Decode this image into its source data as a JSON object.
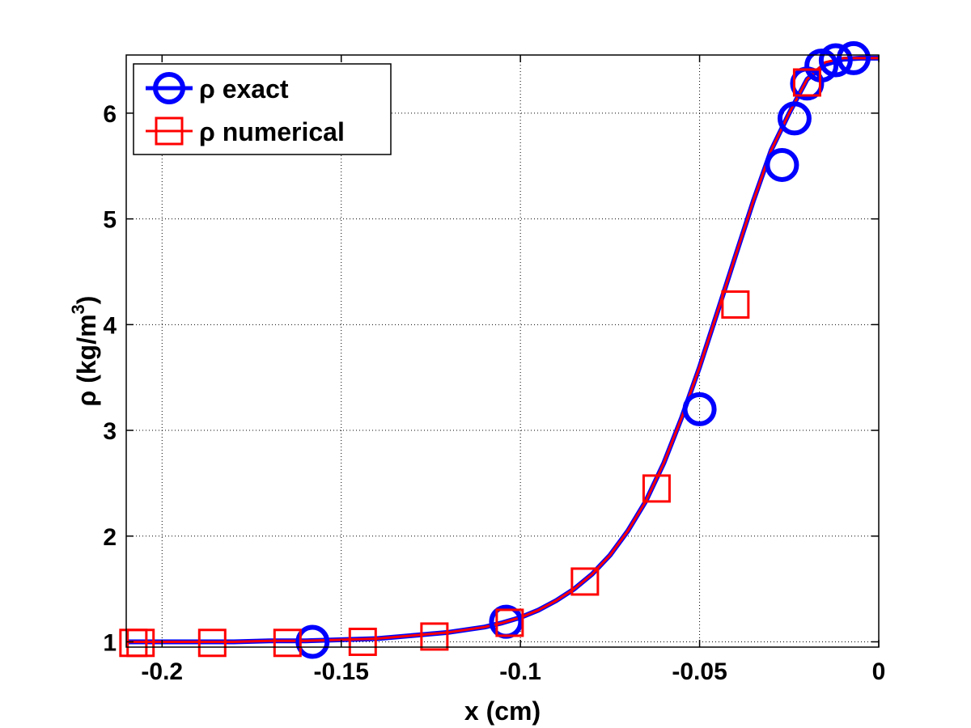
{
  "chart_data": {
    "type": "line",
    "title": "",
    "xlabel": "x (cm)",
    "ylabel": "ρ (kg/m",
    "ylabel_sup": "3",
    "ylabel_close": ")",
    "xlim": [
      -0.21,
      0.0
    ],
    "ylim": [
      0.95,
      6.55
    ],
    "x_ticks": [
      -0.2,
      -0.15,
      -0.1,
      -0.05,
      0
    ],
    "x_tick_labels": [
      "-0.2",
      "-0.15",
      "-0.1",
      "-0.05",
      "0"
    ],
    "y_ticks": [
      1,
      2,
      3,
      4,
      5,
      6
    ],
    "y_tick_labels": [
      "1",
      "2",
      "3",
      "4",
      "5",
      "6"
    ],
    "grid": true,
    "legend_position": "top-left",
    "series": [
      {
        "name": "ρ exact",
        "color": "#0000ff",
        "marker": "circle",
        "curve_x": [
          -0.21,
          -0.2,
          -0.19,
          -0.18,
          -0.17,
          -0.16,
          -0.15,
          -0.14,
          -0.13,
          -0.12,
          -0.11,
          -0.105,
          -0.1,
          -0.095,
          -0.09,
          -0.085,
          -0.08,
          -0.075,
          -0.07,
          -0.065,
          -0.06,
          -0.055,
          -0.05,
          -0.045,
          -0.04,
          -0.035,
          -0.03,
          -0.025,
          -0.02,
          -0.015,
          -0.01,
          -0.005,
          0.0
        ],
        "curve_y": [
          1.0,
          1.0,
          1.0,
          1.0,
          1.01,
          1.01,
          1.02,
          1.03,
          1.06,
          1.09,
          1.14,
          1.18,
          1.23,
          1.3,
          1.39,
          1.5,
          1.64,
          1.82,
          2.05,
          2.33,
          2.69,
          3.12,
          3.6,
          4.12,
          4.65,
          5.17,
          5.65,
          6.0,
          6.32,
          6.46,
          6.51,
          6.52,
          6.52
        ],
        "markers_x": [
          -0.158,
          -0.104,
          -0.05,
          -0.027,
          -0.0235,
          -0.02,
          -0.016,
          -0.012,
          -0.007
        ],
        "markers_y": [
          1.0,
          1.19,
          3.2,
          5.51,
          5.95,
          6.28,
          6.45,
          6.5,
          6.52
        ]
      },
      {
        "name": "ρ numerical",
        "color": "#ff0000",
        "marker": "square",
        "curve_x": [
          -0.21,
          -0.2,
          -0.19,
          -0.18,
          -0.17,
          -0.16,
          -0.15,
          -0.14,
          -0.13,
          -0.12,
          -0.11,
          -0.105,
          -0.1,
          -0.095,
          -0.09,
          -0.085,
          -0.08,
          -0.075,
          -0.07,
          -0.065,
          -0.06,
          -0.055,
          -0.05,
          -0.045,
          -0.04,
          -0.035,
          -0.03,
          -0.025,
          -0.02,
          -0.015,
          -0.01,
          -0.005,
          0.0
        ],
        "curve_y": [
          1.0,
          1.0,
          1.0,
          1.0,
          1.01,
          1.01,
          1.02,
          1.03,
          1.06,
          1.09,
          1.14,
          1.18,
          1.23,
          1.3,
          1.39,
          1.5,
          1.64,
          1.82,
          2.05,
          2.33,
          2.69,
          3.12,
          3.6,
          4.12,
          4.65,
          5.17,
          5.65,
          6.0,
          6.32,
          6.48,
          6.52,
          6.52,
          6.52
        ],
        "markers_x": [
          -0.208,
          -0.206,
          -0.186,
          -0.165,
          -0.144,
          -0.124,
          -0.103,
          -0.082,
          -0.062,
          -0.04,
          -0.02
        ],
        "markers_y": [
          0.99,
          0.99,
          0.99,
          0.99,
          1.0,
          1.05,
          1.18,
          1.57,
          2.45,
          4.19,
          6.29
        ]
      }
    ]
  }
}
